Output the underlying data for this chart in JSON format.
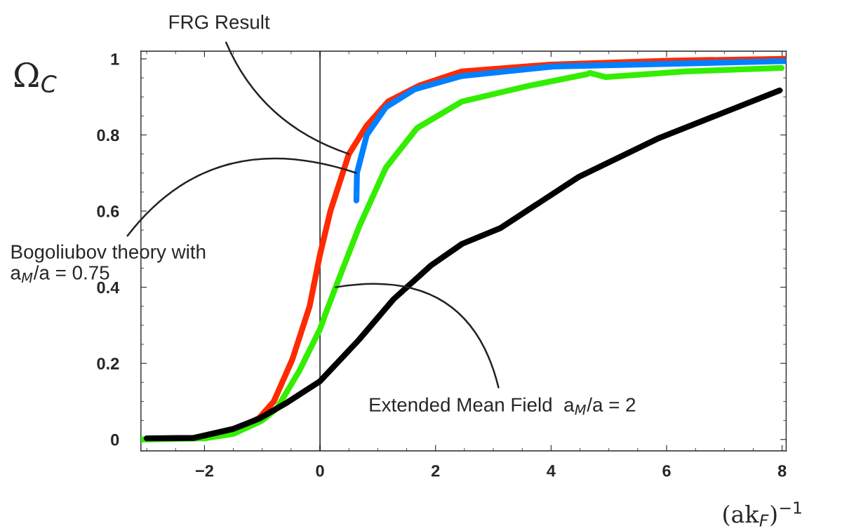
{
  "chart_data": {
    "type": "line",
    "xlabel": "(ak$_{F}$)$^{−1}$",
    "ylabel": "Ω$_{C}$",
    "xlim": [
      -3.1,
      8.07
    ],
    "ylim": [
      -0.03,
      1.02
    ],
    "xticks": [
      -2,
      0,
      2,
      4,
      6,
      8
    ],
    "yticks": [
      {
        "value": 0,
        "label": "0"
      },
      0.2,
      0.4,
      0.6,
      0.8,
      {
        "value": 1,
        "label": "1"
      }
    ],
    "grid": false,
    "legend": false,
    "marker": "none",
    "line_style": "solid",
    "ref_lines": [
      {
        "axis": "x",
        "value": 0,
        "color": "#000000",
        "line_style": "solid"
      }
    ],
    "annotations": [
      {
        "text": "FRG Result",
        "x": 0.5,
        "y": 0.75
      },
      {
        "text": "Bogoliubov theory with\na$_{M}$/a = 0.75",
        "x": 0.63,
        "y": 0.7
      },
      {
        "text": "Extended Mean Field  a$_{M}$/a = 2",
        "x": 0.27,
        "y": 0.4
      }
    ],
    "series": [
      {
        "color": "#ff2a00",
        "x": [
          -1.2,
          -1.05,
          -0.8,
          -0.48,
          -0.18,
          0,
          0.18,
          0.5,
          0.81,
          1.18,
          1.72,
          2.46,
          4,
          6,
          8.06
        ],
        "values": [
          0.045,
          0.057,
          0.1,
          0.21,
          0.35,
          0.486,
          0.6,
          0.75,
          0.825,
          0.888,
          0.93,
          0.967,
          0.985,
          0.995,
          1.0
        ]
      },
      {
        "color": "#0080ff",
        "x": [
          0.63,
          0.64,
          0.81,
          1.14,
          1.64,
          2.46,
          4.04,
          8.06
        ],
        "values": [
          0.628,
          0.7,
          0.8,
          0.873,
          0.92,
          0.955,
          0.98,
          0.994
        ]
      },
      {
        "color": "#33ee00",
        "x": [
          -3.1,
          -2,
          -1.5,
          -1,
          -0.74,
          -0.36,
          0,
          0.085,
          0.27,
          0.68,
          1.14,
          1.68,
          2.46,
          3.58,
          4.63,
          4.67,
          4.95,
          6.32,
          7.99
        ],
        "values": [
          0.0,
          0.003,
          0.015,
          0.05,
          0.083,
          0.18,
          0.29,
          0.326,
          0.4,
          0.56,
          0.714,
          0.818,
          0.888,
          0.928,
          0.96,
          0.963,
          0.952,
          0.967,
          0.976
        ]
      },
      {
        "color": "#000000",
        "x": [
          -3.0,
          -2.19,
          -1.5,
          -1.05,
          -0.56,
          0,
          0.68,
          1.27,
          1.92,
          2.46,
          3.12,
          4.48,
          5.84,
          7.96
        ],
        "values": [
          0.003,
          0.004,
          0.028,
          0.055,
          0.098,
          0.153,
          0.263,
          0.368,
          0.457,
          0.514,
          0.555,
          0.69,
          0.79,
          0.917
        ]
      }
    ]
  }
}
